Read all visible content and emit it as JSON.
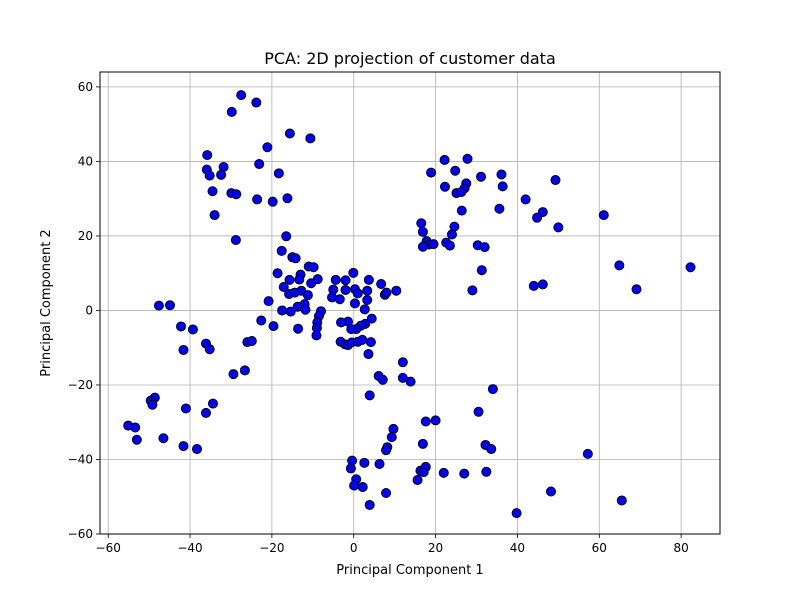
{
  "chart_data": {
    "type": "scatter",
    "title": "PCA: 2D projection of customer data",
    "xlabel": "Principal Component 1",
    "ylabel": "Principal Component 2",
    "xlim": [
      -62,
      89.5
    ],
    "ylim": [
      -60,
      64
    ],
    "xticks": [
      -60,
      -40,
      -20,
      0,
      20,
      40,
      60,
      80
    ],
    "yticks": [
      -60,
      -40,
      -20,
      0,
      20,
      40,
      60
    ],
    "grid": true,
    "marker_color": "#0000ff",
    "marker_edge_color": "#000000",
    "series": [
      {
        "points": [
          [
            -27.5,
            57.8
          ],
          [
            -23.8,
            55.8
          ],
          [
            -29.8,
            53.3
          ],
          [
            -15.6,
            47.5
          ],
          [
            -10.6,
            46.2
          ],
          [
            -21.1,
            43.8
          ],
          [
            -35.8,
            41.7
          ],
          [
            -31.8,
            38.5
          ],
          [
            -35.9,
            37.8
          ],
          [
            -35.2,
            36.2
          ],
          [
            -32.4,
            36.4
          ],
          [
            -18.3,
            36.8
          ],
          [
            -23.1,
            39.3
          ],
          [
            -34.5,
            32.0
          ],
          [
            -29.9,
            31.5
          ],
          [
            -28.7,
            31.2
          ],
          [
            -23.6,
            29.8
          ],
          [
            -19.8,
            29.2
          ],
          [
            -16.2,
            30.1
          ],
          [
            -34.0,
            25.6
          ],
          [
            -28.8,
            18.9
          ],
          [
            -16.5,
            19.9
          ],
          [
            -17.6,
            16.0
          ],
          [
            -15.0,
            14.3
          ],
          [
            -14.2,
            14.0
          ],
          [
            -11.0,
            11.8
          ],
          [
            -9.8,
            11.6
          ],
          [
            -18.6,
            10.0
          ],
          [
            -13.0,
            9.6
          ],
          [
            -13.3,
            8.3
          ],
          [
            -15.7,
            8.2
          ],
          [
            -8.8,
            8.4
          ],
          [
            -10.4,
            7.3
          ],
          [
            -2.0,
            8.1
          ],
          [
            -0.1,
            10.1
          ],
          [
            -4.4,
            8.2
          ],
          [
            -17.1,
            6.3
          ],
          [
            -15.8,
            4.4
          ],
          [
            -12.8,
            5.3
          ],
          [
            -14.4,
            4.8
          ],
          [
            -11.2,
            4.1
          ],
          [
            -12.0,
            1.7
          ],
          [
            -20.8,
            2.5
          ],
          [
            -13.7,
            1.0
          ],
          [
            -17.5,
            0.0
          ],
          [
            -15.4,
            -0.3
          ],
          [
            -11.8,
            0.2
          ],
          [
            -8.0,
            -0.2
          ],
          [
            -8.5,
            -1.5
          ],
          [
            -8.9,
            -3.2
          ],
          [
            -9.0,
            -4.7
          ],
          [
            -13.6,
            -4.9
          ],
          [
            -9.1,
            -6.7
          ],
          [
            -19.6,
            -4.2
          ],
          [
            -22.6,
            -2.7
          ],
          [
            -26.0,
            -8.5
          ],
          [
            -24.9,
            -8.2
          ],
          [
            -26.6,
            -16.1
          ],
          [
            -29.4,
            -17.1
          ],
          [
            -5.3,
            3.5
          ],
          [
            -5.0,
            5.6
          ],
          [
            -3.4,
            3.0
          ],
          [
            -2.0,
            5.5
          ],
          [
            0.3,
            5.7
          ],
          [
            1.0,
            4.6
          ],
          [
            3.3,
            5.3
          ],
          [
            3.7,
            8.2
          ],
          [
            6.7,
            7.1
          ],
          [
            7.6,
            4.2
          ],
          [
            8.0,
            4.8
          ],
          [
            10.4,
            5.3
          ],
          [
            0.3,
            1.9
          ],
          [
            3.3,
            2.8
          ],
          [
            2.7,
            0.3
          ],
          [
            4.4,
            -2.2
          ],
          [
            2.8,
            -3.6
          ],
          [
            1.7,
            -4.1
          ],
          [
            0.6,
            -5.0
          ],
          [
            -1.4,
            -3.0
          ],
          [
            -3.1,
            -3.2
          ],
          [
            -0.6,
            -5.0
          ],
          [
            -3.2,
            -8.4
          ],
          [
            -2.1,
            -9.1
          ],
          [
            -1.4,
            -9.3
          ],
          [
            -0.5,
            -8.6
          ],
          [
            1.0,
            -8.4
          ],
          [
            2.1,
            -7.9
          ],
          [
            4.2,
            -8.5
          ],
          [
            3.6,
            -11.7
          ],
          [
            6.1,
            -17.6
          ],
          [
            7.1,
            -18.6
          ],
          [
            12.0,
            -13.9
          ],
          [
            12.0,
            -18.1
          ],
          [
            13.9,
            -19.1
          ],
          [
            3.9,
            -22.8
          ],
          [
            -47.6,
            1.3
          ],
          [
            -44.9,
            1.4
          ],
          [
            -42.2,
            -4.3
          ],
          [
            -39.3,
            -5.1
          ],
          [
            -41.6,
            -10.6
          ],
          [
            -36.1,
            -8.9
          ],
          [
            -35.2,
            -10.4
          ],
          [
            -48.6,
            -23.4
          ],
          [
            -49.6,
            -24.2
          ],
          [
            -49.2,
            -25.3
          ],
          [
            -41.0,
            -26.3
          ],
          [
            -36.1,
            -27.5
          ],
          [
            -34.4,
            -25.0
          ],
          [
            -55.1,
            -30.9
          ],
          [
            -53.4,
            -31.4
          ],
          [
            -53.0,
            -34.7
          ],
          [
            -46.5,
            -34.3
          ],
          [
            -41.6,
            -36.4
          ],
          [
            -38.3,
            -37.2
          ],
          [
            22.2,
            40.4
          ],
          [
            27.8,
            40.7
          ],
          [
            18.9,
            37.0
          ],
          [
            24.8,
            37.5
          ],
          [
            36.1,
            36.5
          ],
          [
            49.3,
            35.0
          ],
          [
            31.1,
            35.9
          ],
          [
            27.5,
            34.1
          ],
          [
            27.1,
            32.8
          ],
          [
            36.4,
            33.3
          ],
          [
            22.3,
            33.2
          ],
          [
            25.1,
            31.5
          ],
          [
            26.3,
            31.8
          ],
          [
            42.0,
            29.8
          ],
          [
            46.2,
            26.4
          ],
          [
            35.6,
            27.3
          ],
          [
            26.4,
            26.8
          ],
          [
            44.8,
            24.9
          ],
          [
            61.1,
            25.6
          ],
          [
            50.0,
            22.3
          ],
          [
            16.5,
            23.4
          ],
          [
            16.9,
            21.1
          ],
          [
            24.6,
            22.5
          ],
          [
            17.8,
            18.6
          ],
          [
            24.0,
            20.4
          ],
          [
            18.4,
            17.7
          ],
          [
            19.5,
            17.8
          ],
          [
            16.9,
            17.1
          ],
          [
            22.6,
            18.2
          ],
          [
            23.5,
            17.4
          ],
          [
            30.3,
            17.5
          ],
          [
            32.0,
            17.0
          ],
          [
            31.3,
            10.8
          ],
          [
            64.9,
            12.1
          ],
          [
            82.3,
            11.6
          ],
          [
            44.0,
            6.6
          ],
          [
            46.2,
            7.0
          ],
          [
            69.1,
            5.7
          ],
          [
            29.0,
            5.4
          ],
          [
            34.0,
            -21.1
          ],
          [
            30.5,
            -27.2
          ],
          [
            20.0,
            -29.5
          ],
          [
            17.6,
            -29.8
          ],
          [
            9.7,
            -31.8
          ],
          [
            9.3,
            -34.0
          ],
          [
            16.9,
            -35.8
          ],
          [
            8.2,
            -36.7
          ],
          [
            7.9,
            -37.5
          ],
          [
            32.2,
            -36.1
          ],
          [
            33.6,
            -37.2
          ],
          [
            57.2,
            -38.5
          ],
          [
            -0.4,
            -40.3
          ],
          [
            -0.7,
            -42.4
          ],
          [
            2.6,
            -40.9
          ],
          [
            6.3,
            -41.2
          ],
          [
            16.3,
            -43.0
          ],
          [
            17.6,
            -42.0
          ],
          [
            17.1,
            -43.4
          ],
          [
            22.0,
            -43.6
          ],
          [
            27.0,
            -43.8
          ],
          [
            32.4,
            -43.3
          ],
          [
            0.6,
            -45.3
          ],
          [
            0.1,
            -47.0
          ],
          [
            2.2,
            -47.4
          ],
          [
            7.9,
            -49.0
          ],
          [
            15.6,
            -45.5
          ],
          [
            3.9,
            -52.2
          ],
          [
            48.2,
            -48.6
          ],
          [
            65.5,
            -51.0
          ],
          [
            39.8,
            -54.4
          ]
        ]
      }
    ]
  }
}
